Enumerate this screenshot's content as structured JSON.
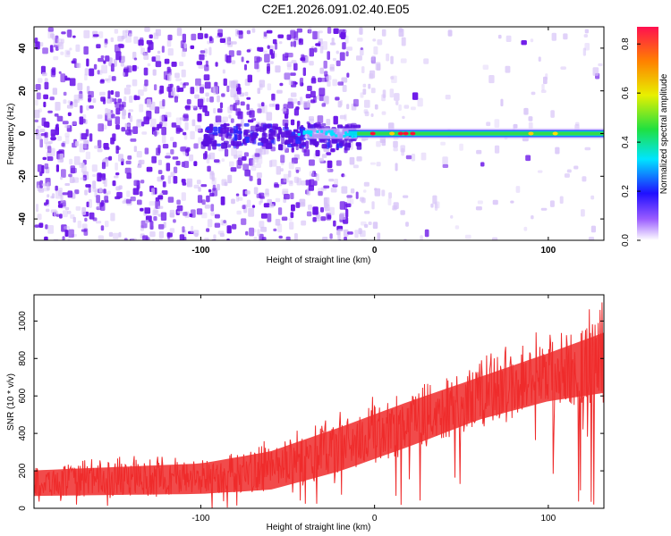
{
  "title": "C2E1.2026.091.02.40.E05",
  "colors": {
    "snr_line": "#ee2b2b",
    "scatter_purple": "#6a14e8",
    "scatter_light": "#d6c2f7",
    "band_green": "#34d84a",
    "band_red": "#ff1030"
  },
  "chart_data": [
    {
      "type": "heatmap",
      "name": "spectrogram",
      "xlabel": "Height of straight line (km)",
      "ylabel": "Frequency (Hz)",
      "xlim": [
        -196,
        132
      ],
      "ylim": [
        -50,
        50
      ],
      "x_ticks": [
        -100,
        0,
        100
      ],
      "x_tick_labels": [
        "-100",
        "0",
        "100"
      ],
      "y_ticks": [
        -40,
        -20,
        0,
        20,
        40
      ],
      "y_tick_labels": [
        "-40",
        "-20",
        "0",
        "20",
        "40"
      ],
      "band_frequency_hz": 0,
      "band_start_km": -100,
      "colorbar": {
        "label": "Normalized spectral amplitude",
        "range": [
          0,
          0.87
        ],
        "ticks": [
          0,
          0.2,
          0.4,
          0.6,
          0.8
        ],
        "tick_labels": [
          "0.0",
          "0.2",
          "0.4",
          "0.6",
          "0.8"
        ]
      }
    },
    {
      "type": "line",
      "name": "snr",
      "xlabel": "Height of straight line (km)",
      "ylabel": "SNR (10 * v/v)",
      "xlim": [
        -196,
        132
      ],
      "ylim": [
        0,
        1140
      ],
      "x_ticks": [
        -100,
        0,
        100
      ],
      "x_tick_labels": [
        "-100",
        "0",
        "100"
      ],
      "y_ticks": [
        0,
        200,
        400,
        600,
        800,
        1000
      ],
      "y_tick_labels": [
        "0",
        "200",
        "400",
        "600",
        "800",
        "1000"
      ],
      "trend": {
        "x": [
          -196,
          -100,
          -60,
          -20,
          20,
          60,
          100,
          132
        ],
        "low": [
          60,
          70,
          90,
          180,
          300,
          430,
          520,
          560
        ],
        "high": [
          220,
          260,
          330,
          470,
          620,
          760,
          900,
          1020
        ]
      }
    }
  ]
}
